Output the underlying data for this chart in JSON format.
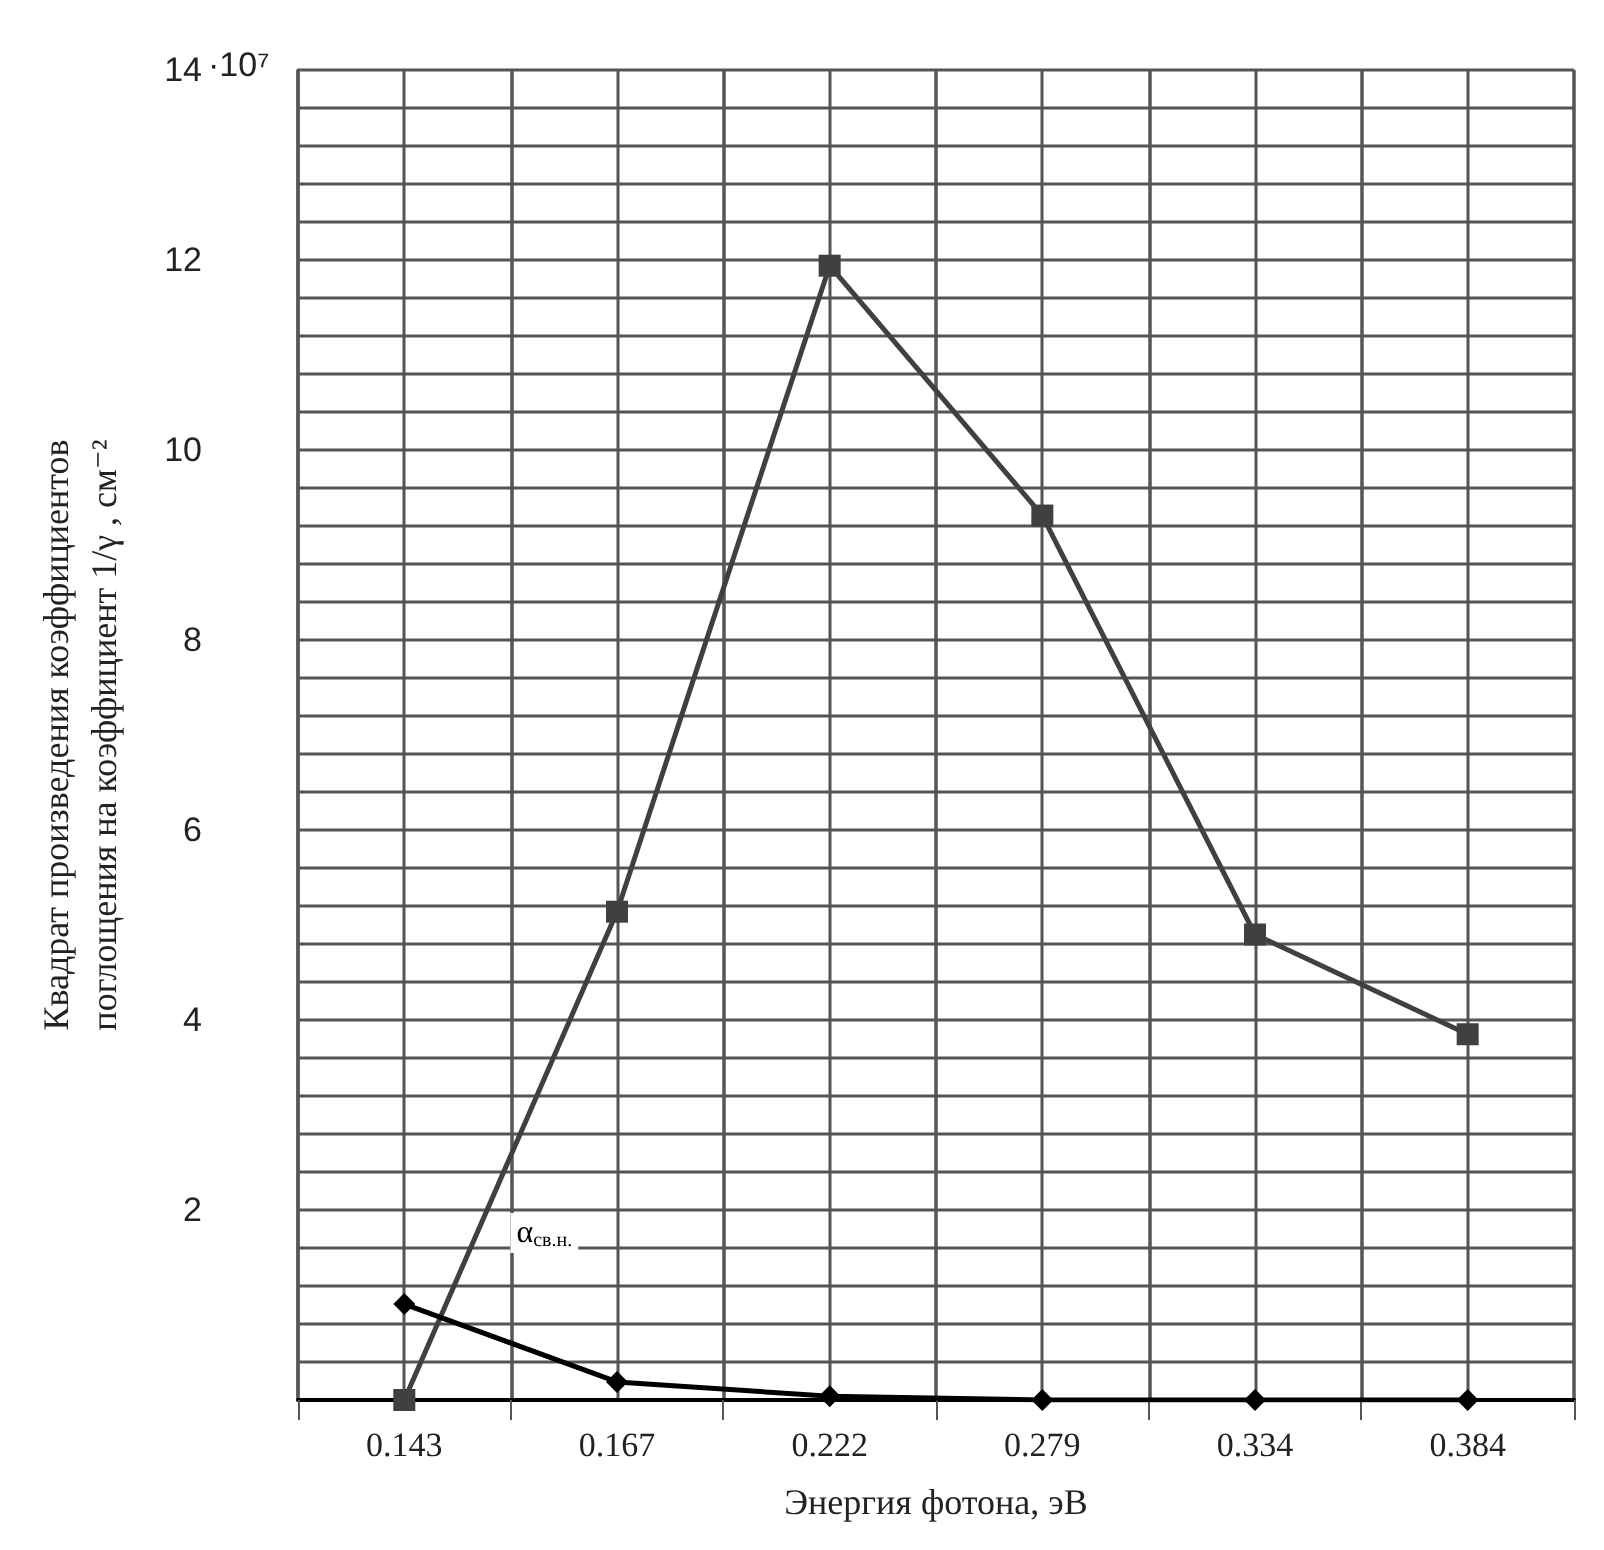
{
  "chart_data": {
    "type": "line",
    "xlabel": "Энергия фотона, эВ",
    "ylabel": "Квадрат произведения коэффициентов\nпоглощения на коэффициент 1/γ , см⁻²",
    "annotations": [
      "·10⁷"
    ],
    "categories": [
      "0.143",
      "0.167",
      "0.222",
      "0.279",
      "0.334",
      "0.384"
    ],
    "series": [
      {
        "color": "#404040",
        "marker": "square",
        "values": [
          0,
          5.14,
          11.94,
          9.31,
          4.9,
          3.85
        ]
      },
      {
        "name": "α$_{св.н.}$",
        "color": "#000000",
        "marker": "diamond",
        "values": [
          1.01,
          0.19,
          0.04,
          0,
          0,
          0
        ]
      }
    ],
    "ylim": [
      0,
      14
    ],
    "yticks": [
      {
        "value": 0,
        "label": null
      },
      {
        "value": 0.4,
        "label": null
      },
      {
        "value": 0.8,
        "label": null
      },
      {
        "value": 1.2,
        "label": null
      },
      {
        "value": 1.6,
        "label": null
      },
      2,
      {
        "value": 2.4,
        "label": null
      },
      {
        "value": 2.8,
        "label": null
      },
      {
        "value": 3.2,
        "label": null
      },
      {
        "value": 3.6,
        "label": null
      },
      4,
      {
        "value": 4.4,
        "label": null
      },
      {
        "value": 4.8,
        "label": null
      },
      {
        "value": 5.2,
        "label": null
      },
      {
        "value": 5.6,
        "label": null
      },
      6,
      {
        "value": 6.4,
        "label": null
      },
      {
        "value": 6.8,
        "label": null
      },
      {
        "value": 7.2,
        "label": null
      },
      {
        "value": 7.6,
        "label": null
      },
      8,
      {
        "value": 8.4,
        "label": null
      },
      {
        "value": 8.8,
        "label": null
      },
      {
        "value": 9.2,
        "label": null
      },
      {
        "value": 9.6,
        "label": null
      },
      10,
      {
        "value": 10.4,
        "label": null
      },
      {
        "value": 10.8,
        "label": null
      },
      {
        "value": 11.2,
        "label": null
      },
      {
        "value": 11.6,
        "label": null
      },
      12,
      {
        "value": 12.4,
        "label": null
      },
      {
        "value": 12.8,
        "label": null
      },
      {
        "value": 13.2,
        "label": null
      },
      {
        "value": 13.6,
        "label": null
      },
      14
    ],
    "grid": true,
    "legend": false,
    "line_style": "solid"
  }
}
